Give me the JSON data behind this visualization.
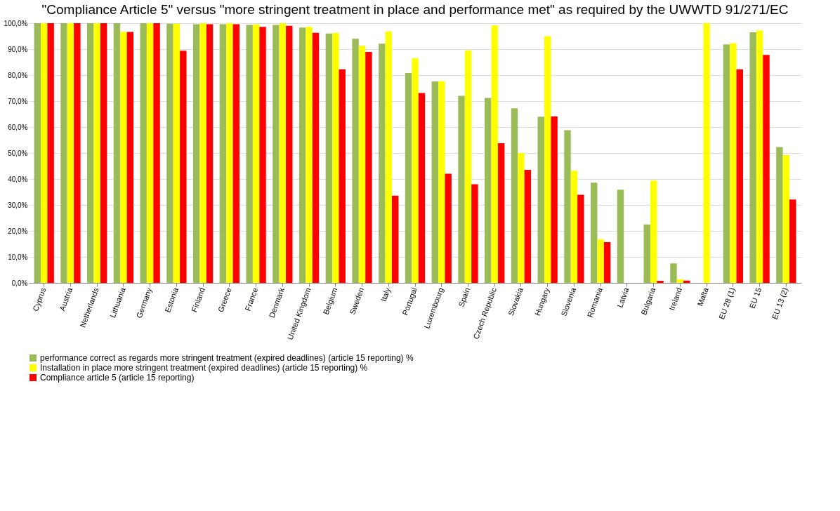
{
  "chart_data": {
    "type": "bar",
    "title": "\"Compliance Article 5\" versus \"more stringent treatment in place and performance met\" as required by the UWWTD 91/271/EC",
    "categories": [
      "Cyprus",
      "Austria",
      "Netherlands",
      "Lithuania",
      "Germany",
      "Estonia",
      "Finland",
      "Greece",
      "France",
      "Denmark",
      "United Kingdom",
      "Belgium",
      "Sweden",
      "Italy",
      "Portugal",
      "Luxembourg",
      "Spain",
      "Czech Republic",
      "Slovakia",
      "Hungary",
      "Slovenia",
      "Romania",
      "Latvia",
      "Bulgaria",
      "Ireland",
      "Malta",
      "EU 28 (1)",
      "EU 15",
      "EU 13 (2)"
    ],
    "series": [
      {
        "name": "performance correct as regards more stringent treatment  (expired deadlines) (article 15 reporting) %",
        "color": "#9bbb59",
        "values": [
          100,
          100,
          100,
          100,
          100,
          99.8,
          99.6,
          99.6,
          99.3,
          99.3,
          98.3,
          96,
          94,
          92.1,
          80.8,
          77.6,
          72,
          71.2,
          67.2,
          64,
          58.8,
          38.6,
          35.9,
          22.5,
          7.5,
          0,
          91.8,
          96.5,
          52.3
        ]
      },
      {
        "name": "Installation in place more stringent treatment (expired deadlines) (article 15 reporting) %",
        "color": "#ffff00",
        "values": [
          100,
          100,
          100,
          96.7,
          100,
          99.8,
          100,
          100,
          99.5,
          100,
          98.6,
          96.2,
          91.3,
          96.8,
          86.5,
          77.7,
          89.5,
          99.1,
          50,
          95,
          43.2,
          16.8,
          0,
          39.4,
          1.4,
          100,
          92.3,
          97.2,
          49.2
        ]
      },
      {
        "name": "Compliance article 5 (article 15 reporting)",
        "color": "#ff0000",
        "values": [
          100,
          100,
          100,
          96.6,
          100,
          89.4,
          99.6,
          99.6,
          98.6,
          99,
          96.3,
          82.2,
          88.9,
          33.6,
          73.1,
          42,
          38,
          53.8,
          43.5,
          64.1,
          33.9,
          15.7,
          0,
          0.8,
          0.9,
          0,
          82.2,
          87.8,
          32.1
        ]
      }
    ],
    "ylim": [
      0,
      100
    ],
    "yticks": [
      {
        "value": 0,
        "label": "0,0%"
      },
      {
        "value": 10,
        "label": "10,0%"
      },
      {
        "value": 20,
        "label": "20,0%"
      },
      {
        "value": 30,
        "label": "30,0%"
      },
      {
        "value": 40,
        "label": "40,0%"
      },
      {
        "value": 50,
        "label": "50,0%"
      },
      {
        "value": 60,
        "label": "60,0%"
      },
      {
        "value": 70,
        "label": "70,0%"
      },
      {
        "value": 80,
        "label": "80,0%"
      },
      {
        "value": 90,
        "label": "90,0%"
      },
      {
        "value": 100,
        "label": "100,0%"
      }
    ],
    "grid": "y",
    "legend": "bottom left"
  }
}
